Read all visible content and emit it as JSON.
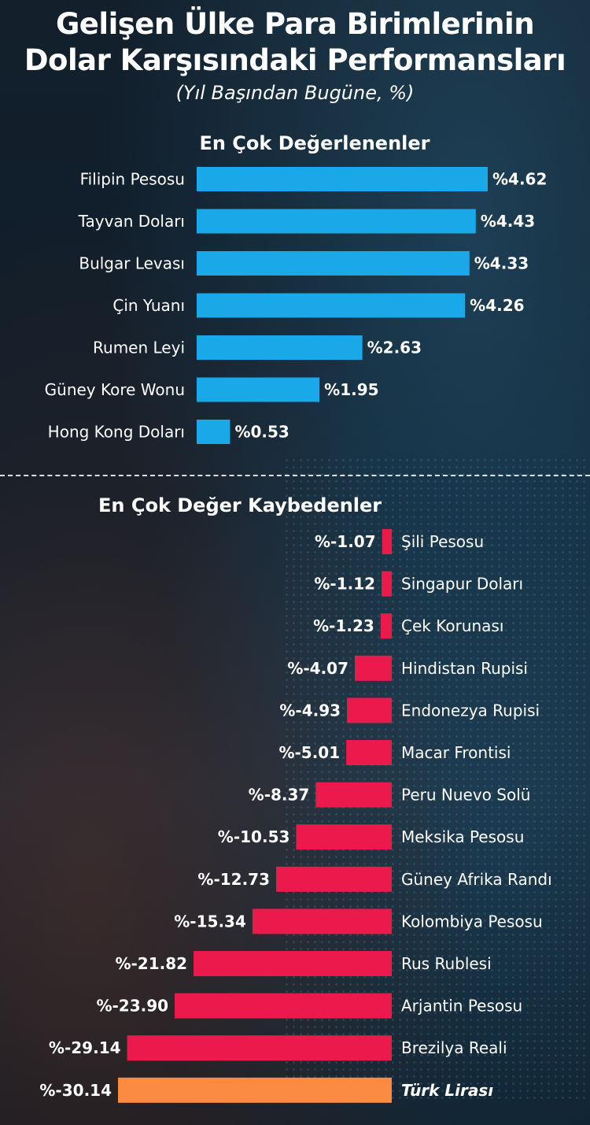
{
  "header": {
    "title_line1": "Gelişen Ülke Para Birimlerinin",
    "title_line2": "Dolar Karşısındaki Performansları",
    "subtitle": "(Yıl Başından Bugüne, %)"
  },
  "chart_data": [
    {
      "type": "bar",
      "orientation": "horizontal",
      "title": "En Çok Değerlenenler",
      "categories": [
        "Filipin Pesosu",
        "Tayvan Doları",
        "Bulgar Levası",
        "Çin Yuanı",
        "Rumen Leyi",
        "Güney Kore Wonu",
        "Hong Kong Doları"
      ],
      "values": [
        4.62,
        4.43,
        4.33,
        4.26,
        2.63,
        1.95,
        0.53
      ],
      "value_labels": [
        "%4.62",
        "%4.43",
        "%4.33",
        "%4.26",
        "%2.63",
        "%1.95",
        "%0.53"
      ],
      "colors": {
        "bar": "#1aa9e8"
      }
    },
    {
      "type": "bar",
      "orientation": "horizontal",
      "title": "En Çok Değer Kaybedenler",
      "categories": [
        "Şili Pesosu",
        "Singapur Doları",
        "Çek Korunası",
        "Hindistan Rupisi",
        "Endonezya Rupisi",
        "Macar Frontisi",
        "Peru Nuevo Solü",
        "Meksika Pesosu",
        "Güney Afrika Randı",
        "Kolombiya Pesosu",
        "Rus Rublesi",
        "Arjantin Pesosu",
        "Brezilya Reali",
        "Türk Lirası"
      ],
      "values": [
        -1.07,
        -1.12,
        -1.23,
        -4.07,
        -4.93,
        -5.01,
        -8.37,
        -10.53,
        -12.73,
        -15.34,
        -21.82,
        -23.9,
        -29.14,
        -30.14
      ],
      "value_labels": [
        "%-1.07",
        "%-1.12",
        "%-1.23",
        "%-4.07",
        "%-4.93",
        "%-5.01",
        "%-8.37",
        "%-10.53",
        "%-12.73",
        "%-15.34",
        "%-21.82",
        "%-23.90",
        "%-29.14",
        "%-30.14"
      ],
      "highlight": "Türk Lirası",
      "colors": {
        "bar": "#ec1a4c",
        "highlight": "#fb8a42"
      }
    }
  ]
}
